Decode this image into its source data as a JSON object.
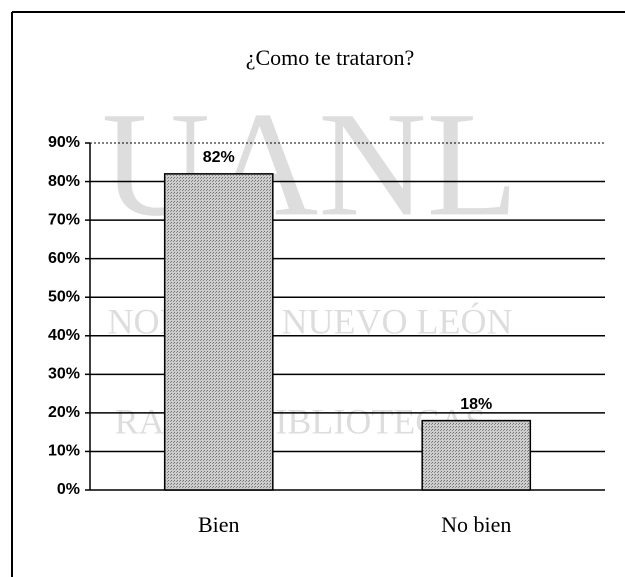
{
  "chart_data": {
    "type": "bar",
    "title": "¿Como te trataron?",
    "categories": [
      "Bien",
      "No bien"
    ],
    "values": [
      82,
      18
    ],
    "value_labels": [
      "82%",
      "18%"
    ],
    "color": "#b4b4b4",
    "ylim": [
      0,
      90
    ],
    "yticks": [
      {
        "value": 0,
        "label": "0%"
      },
      {
        "value": 10,
        "label": "10%"
      },
      {
        "value": 20,
        "label": "20%"
      },
      {
        "value": 30,
        "label": "30%"
      },
      {
        "value": 40,
        "label": "40%"
      },
      {
        "value": 50,
        "label": "50%"
      },
      {
        "value": 60,
        "label": "60%"
      },
      {
        "value": 70,
        "label": "70%"
      },
      {
        "value": 80,
        "label": "80%"
      },
      {
        "value": 90,
        "label": "90%"
      }
    ],
    "grid": true,
    "annotations": [
      "UANL",
      "NOMA DE NUEVO LEÓN",
      "RAL DE BIBLIOTECAS"
    ]
  }
}
